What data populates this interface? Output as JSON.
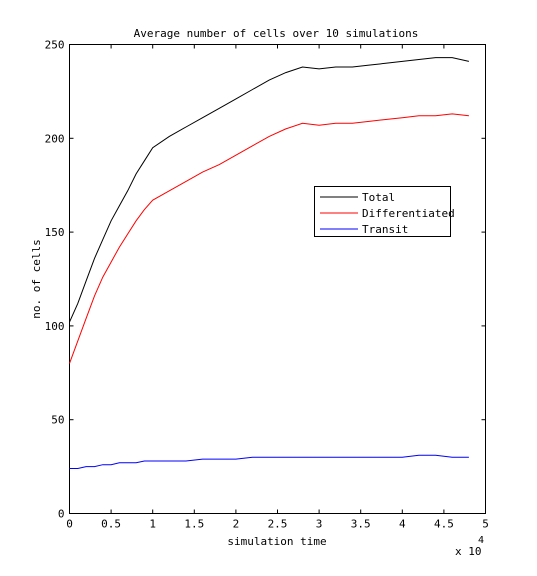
{
  "chart_data": {
    "type": "line",
    "title": "Average number of cells over 10 simulations",
    "xlabel": "simulation time",
    "ylabel": "no. of cells",
    "x_exponent_label": "x 10",
    "x_exponent_power": "4",
    "xlim": [
      0,
      5
    ],
    "ylim": [
      0,
      250
    ],
    "x_ticks": [
      0,
      0.5,
      1,
      1.5,
      2,
      2.5,
      3,
      3.5,
      4,
      4.5,
      5
    ],
    "x_tick_labels": [
      "0",
      "0.5",
      "1",
      "1.5",
      "2",
      "2.5",
      "3",
      "3.5",
      "4",
      "4.5",
      "5"
    ],
    "y_ticks": [
      0,
      50,
      100,
      150,
      200,
      250
    ],
    "y_tick_labels": [
      "0",
      "50",
      "100",
      "150",
      "200",
      "250"
    ],
    "grid": false,
    "legend_position": "right",
    "x": [
      0,
      0.1,
      0.2,
      0.3,
      0.4,
      0.5,
      0.6,
      0.7,
      0.8,
      0.9,
      1.0,
      1.2,
      1.4,
      1.6,
      1.8,
      2.0,
      2.2,
      2.4,
      2.6,
      2.8,
      3.0,
      3.2,
      3.4,
      3.6,
      3.8,
      4.0,
      4.2,
      4.4,
      4.6,
      4.8
    ],
    "series": [
      {
        "name": "Total",
        "color": "#000000",
        "values": [
          102,
          112,
          124,
          136,
          146,
          156,
          164,
          172,
          181,
          188,
          195,
          201,
          206,
          211,
          216,
          221,
          226,
          231,
          235,
          238,
          237,
          238,
          238,
          239,
          240,
          241,
          242,
          243,
          243,
          241
        ]
      },
      {
        "name": "Differentiated",
        "color": "#ff0000",
        "values": [
          80,
          92,
          104,
          116,
          126,
          134,
          142,
          149,
          156,
          162,
          167,
          172,
          177,
          182,
          186,
          191,
          196,
          201,
          205,
          208,
          207,
          208,
          208,
          209,
          210,
          211,
          212,
          212,
          213,
          212
        ]
      },
      {
        "name": "Transit",
        "color": "#0000ff",
        "values": [
          24,
          24,
          25,
          25,
          26,
          26,
          27,
          27,
          27,
          28,
          28,
          28,
          28,
          29,
          29,
          29,
          30,
          30,
          30,
          30,
          30,
          30,
          30,
          30,
          30,
          30,
          31,
          31,
          30,
          30
        ]
      }
    ]
  }
}
